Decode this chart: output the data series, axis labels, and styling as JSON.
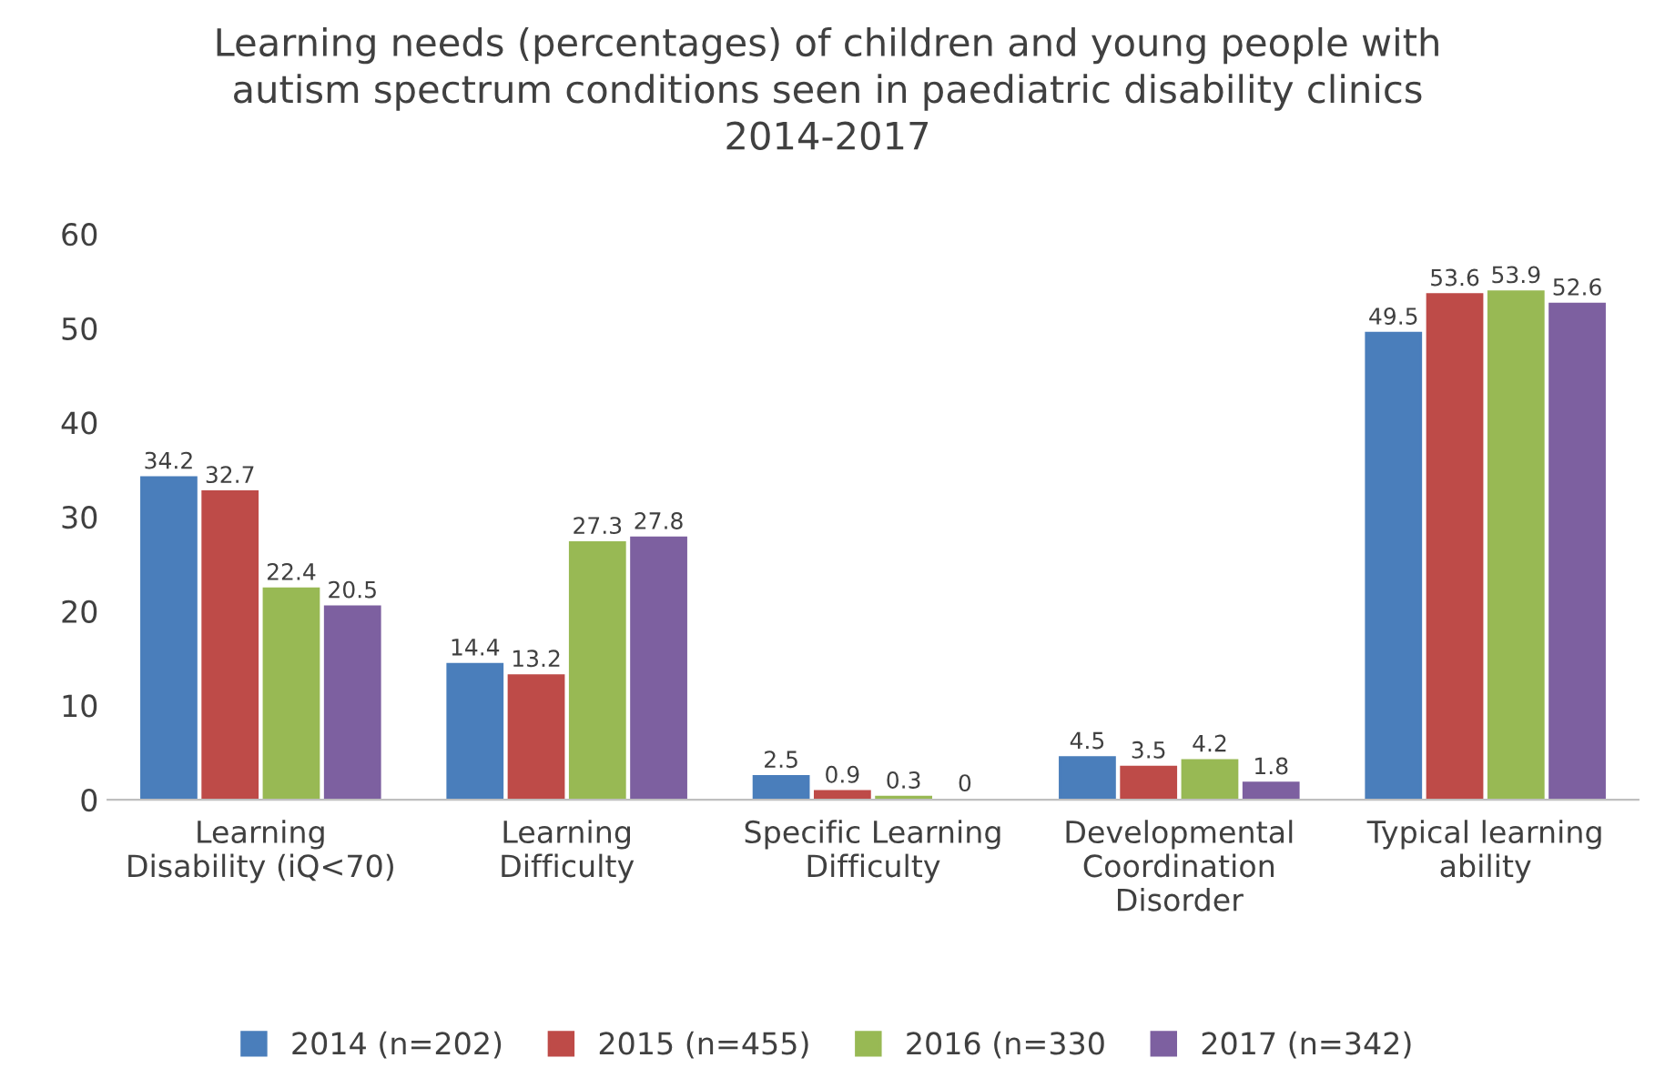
{
  "chart_data": {
    "type": "bar",
    "title": "Learning needs (percentages) of children and young people with\nautism spectrum conditions seen in paediatric disability clinics\n2014-2017",
    "categories": [
      "Learning\nDisability (iQ<70)",
      "Learning\nDifficulty",
      "Specific Learning\nDifficulty",
      "Developmental\nCoordination\nDisorder",
      "Typical learning\nability"
    ],
    "series": [
      {
        "name": "2014 (n=202)",
        "color": "#4a7ebb",
        "values": [
          34.2,
          14.4,
          2.5,
          4.5,
          49.5
        ]
      },
      {
        "name": "2015 (n=455)",
        "color": "#be4b48",
        "values": [
          32.7,
          13.2,
          0.9,
          3.5,
          53.6
        ]
      },
      {
        "name": "2016 (n=330",
        "color": "#98b954",
        "values": [
          22.4,
          27.3,
          0.3,
          4.2,
          53.9
        ]
      },
      {
        "name": "2017 (n=342)",
        "color": "#7d60a0",
        "values": [
          20.5,
          27.8,
          0,
          1.8,
          52.6
        ],
        "value_labels": [
          "20.5",
          "27.8",
          "0",
          "1.8",
          "52.6"
        ]
      }
    ],
    "ylim": [
      0,
      60
    ],
    "yticks": [
      0,
      10,
      20,
      30,
      40,
      50,
      60
    ],
    "grid": false,
    "legend": "bottom",
    "data_labels": true
  }
}
